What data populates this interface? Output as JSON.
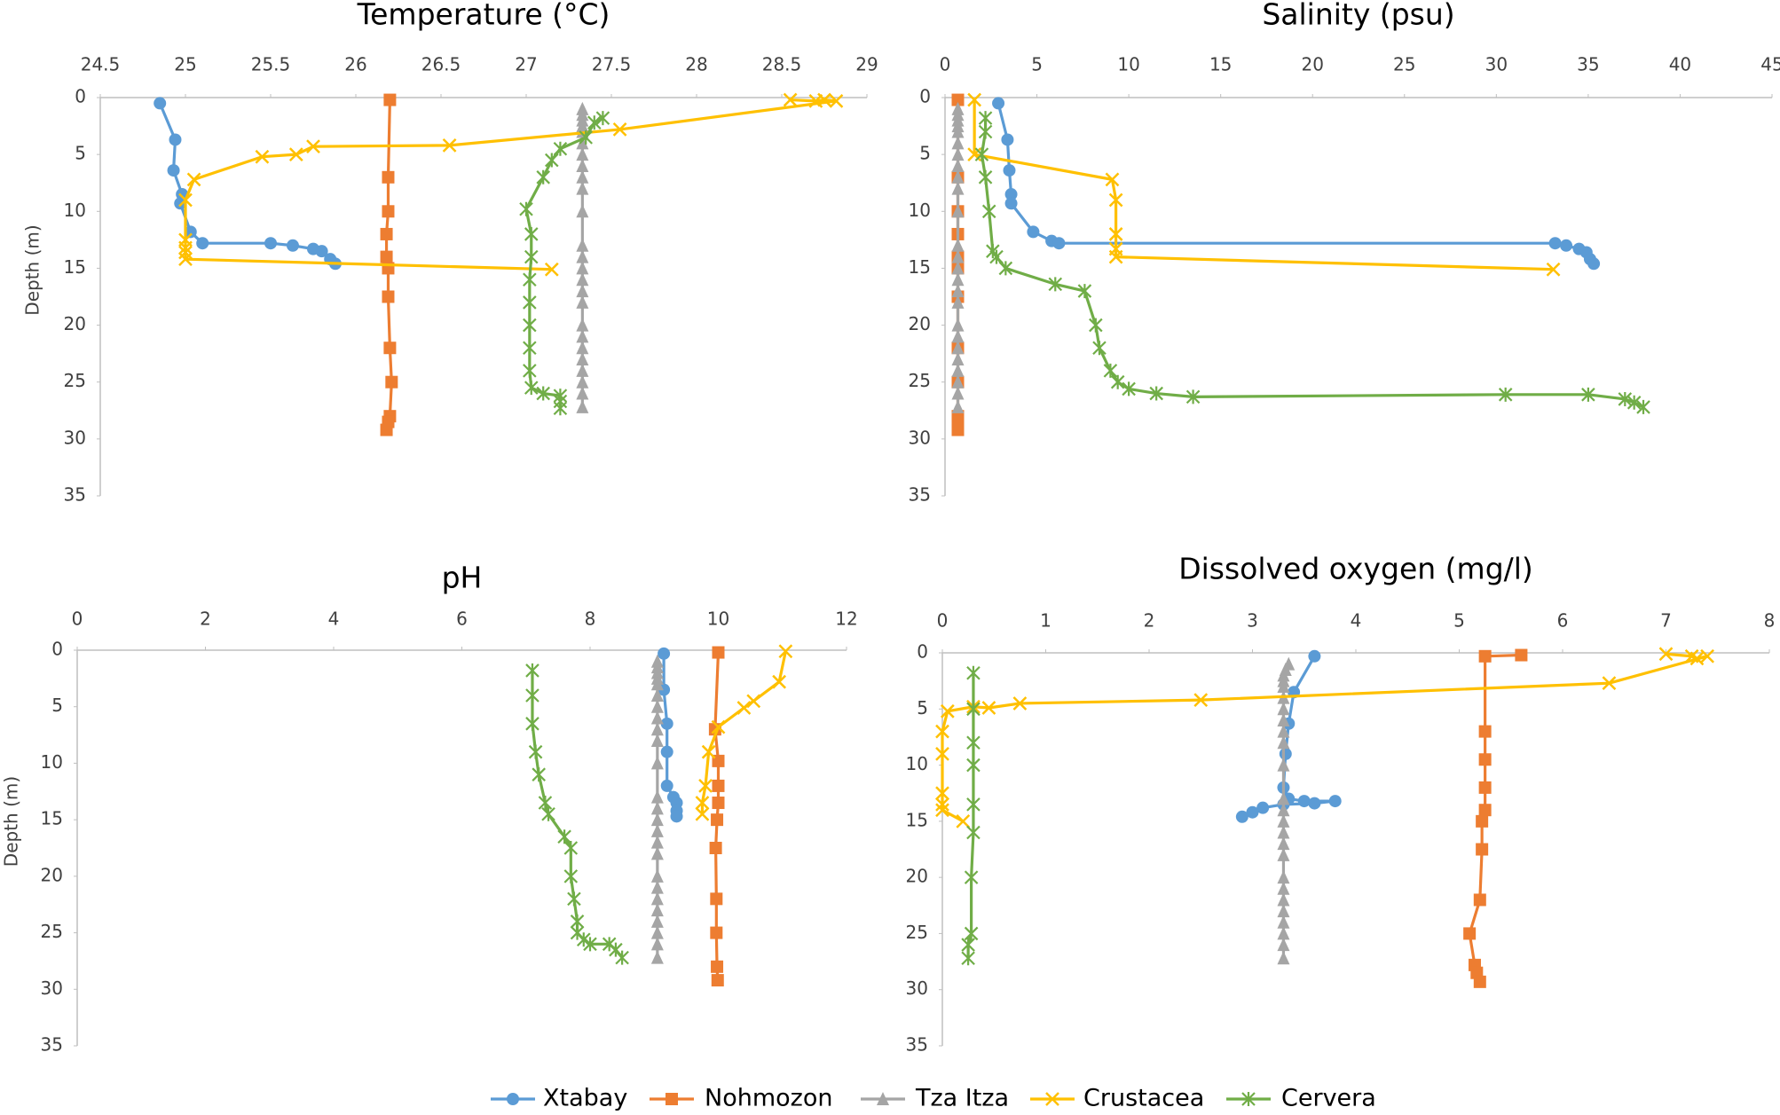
{
  "chart_data": [
    {
      "type": "line",
      "title": "Temperature (°C)",
      "ylabel": "Depth (m)",
      "y_inverted": true,
      "x_axis_position": "top",
      "xlim": [
        24.5,
        29
      ],
      "xticks": [
        24.5,
        25,
        25.5,
        26,
        26.5,
        27,
        27.5,
        28,
        28.5,
        29
      ],
      "ylim": [
        0,
        35
      ],
      "yticks": [
        0,
        5,
        10,
        15,
        20,
        25,
        30,
        35
      ],
      "legend": "bottom",
      "series": [
        {
          "name": "Xtabay",
          "color": "#5b9bd5",
          "marker": "circle",
          "x": [
            24.85,
            24.94,
            24.93,
            24.98,
            24.97,
            25.03,
            25.1,
            25.5,
            25.63,
            25.75,
            25.8,
            25.85,
            25.88
          ],
          "y": [
            0.5,
            3.7,
            6.4,
            8.5,
            9.3,
            11.8,
            12.8,
            12.8,
            13.0,
            13.3,
            13.5,
            14.2,
            14.6
          ]
        },
        {
          "name": "Nohmozon",
          "color": "#ed7d31",
          "marker": "square",
          "x": [
            26.2,
            26.19,
            26.19,
            26.18,
            26.18,
            26.19,
            26.19,
            26.2,
            26.21,
            26.2,
            26.19,
            26.18
          ],
          "y": [
            0.2,
            7,
            10,
            12,
            14,
            15,
            17.5,
            22,
            25,
            28,
            28.5,
            29.2
          ]
        },
        {
          "name": "Tza Itza",
          "color": "#a5a5a5",
          "marker": "triangle",
          "x": [
            27.33,
            27.33,
            27.33,
            27.33,
            27.33,
            27.33,
            27.33,
            27.33,
            27.33,
            27.33,
            27.33,
            27.33,
            27.33,
            27.33,
            27.33,
            27.33,
            27.33,
            27.33,
            27.33,
            27.33,
            27.33,
            27.33,
            27.33,
            27.33,
            27.33
          ],
          "y": [
            1,
            1.5,
            2,
            2.5,
            3,
            4,
            5,
            6,
            7,
            8,
            10,
            13,
            14,
            15,
            16,
            17,
            18,
            20,
            21,
            22,
            23,
            24,
            25,
            26,
            27.2
          ]
        },
        {
          "name": "Crustacea",
          "color": "#ffc000",
          "marker": "x",
          "x": [
            28.55,
            28.7,
            28.75,
            28.82,
            27.55,
            26.55,
            25.75,
            25.65,
            25.45,
            25.05,
            25.0,
            25.0,
            25.0,
            25.0,
            25.0,
            27.15
          ],
          "y": [
            0.2,
            0.3,
            0.2,
            0.3,
            2.8,
            4.2,
            4.3,
            5.0,
            5.2,
            7.2,
            9.0,
            12.5,
            13.2,
            13.6,
            14.2,
            15.1
          ]
        },
        {
          "name": "Cervera",
          "color": "#70ad47",
          "marker": "asterisk",
          "x": [
            27.45,
            27.4,
            27.35,
            27.2,
            27.15,
            27.1,
            27.0,
            27.03,
            27.03,
            27.02,
            27.02,
            27.02,
            27.02,
            27.02,
            27.03,
            27.1,
            27.2,
            27.2,
            27.2
          ],
          "y": [
            1.8,
            2.2,
            3.5,
            4.5,
            5.5,
            7.0,
            9.8,
            12,
            14,
            16,
            18,
            20,
            22,
            24,
            25.5,
            26,
            26.2,
            26.7,
            27.3
          ]
        }
      ]
    },
    {
      "type": "line",
      "title": "Salinity (psu)",
      "y_inverted": true,
      "x_axis_position": "top",
      "xlim": [
        0,
        45
      ],
      "xticks": [
        0,
        5,
        10,
        15,
        20,
        25,
        30,
        35,
        40,
        45
      ],
      "ylim": [
        0,
        35
      ],
      "yticks": [
        0,
        5,
        10,
        15,
        20,
        25,
        30,
        35
      ],
      "series": [
        {
          "color": "#5b9bd5",
          "marker": "circle",
          "x": [
            2.9,
            3.4,
            3.5,
            3.6,
            3.6,
            4.8,
            5.8,
            6.2,
            33.2,
            33.8,
            34.5,
            34.9,
            35.1,
            35.3
          ],
          "y": [
            0.5,
            3.7,
            6.4,
            8.5,
            9.3,
            11.8,
            12.6,
            12.8,
            12.8,
            13.0,
            13.3,
            13.6,
            14.2,
            14.6
          ]
        },
        {
          "color": "#ed7d31",
          "marker": "square",
          "x": [
            0.7,
            0.7,
            0.7,
            0.7,
            0.7,
            0.7,
            0.7,
            0.7,
            0.7,
            0.7,
            0.7,
            0.7
          ],
          "y": [
            0.2,
            7,
            10,
            12,
            14,
            15,
            17.5,
            22,
            25,
            28,
            28.5,
            29.2
          ]
        },
        {
          "color": "#a5a5a5",
          "marker": "triangle",
          "x": [
            0.7,
            0.7,
            0.7,
            0.7,
            0.7,
            0.7,
            0.7,
            0.7,
            0.7,
            0.7,
            0.7,
            0.7,
            0.7,
            0.7,
            0.7,
            0.7,
            0.7,
            0.7,
            0.7,
            0.7,
            0.7,
            0.7,
            0.7,
            0.7,
            0.7
          ],
          "y": [
            1,
            1.5,
            2,
            2.5,
            3,
            4,
            5,
            6,
            7,
            8,
            10,
            13,
            14,
            15,
            16,
            17,
            18,
            20,
            21,
            22,
            23,
            24,
            25,
            26,
            27.2
          ]
        },
        {
          "color": "#ffc000",
          "marker": "x",
          "x": [
            1.6,
            1.6,
            9.1,
            9.3,
            9.3,
            9.3,
            9.3,
            33.1
          ],
          "y": [
            0.2,
            5.0,
            7.2,
            9.0,
            12,
            13.3,
            14,
            15.1
          ]
        },
        {
          "color": "#70ad47",
          "marker": "asterisk",
          "x": [
            2.2,
            2.2,
            2.0,
            2.2,
            2.4,
            2.6,
            2.8,
            3.3,
            6,
            7.6,
            8.2,
            8.4,
            9,
            9.4,
            10,
            11.5,
            13.5,
            30.5,
            35,
            37,
            37.5,
            38
          ],
          "y": [
            1.8,
            3.0,
            5,
            7,
            10,
            13.5,
            14,
            15,
            16.4,
            17,
            20,
            22,
            24,
            25,
            25.6,
            26,
            26.3,
            26.1,
            26.1,
            26.5,
            26.8,
            27.2
          ]
        }
      ]
    },
    {
      "type": "line",
      "title": "pH",
      "ylabel": "Depth (m)",
      "y_inverted": true,
      "x_axis_position": "top",
      "xlim": [
        0,
        12
      ],
      "xticks": [
        0,
        2,
        4,
        6,
        8,
        10,
        12
      ],
      "ylim": [
        0,
        35
      ],
      "yticks": [
        0,
        5,
        10,
        15,
        20,
        25,
        30,
        35
      ],
      "series": [
        {
          "color": "#5b9bd5",
          "marker": "circle",
          "x": [
            9.15,
            9.15,
            9.2,
            9.2,
            9.2,
            9.3,
            9.35,
            9.35,
            9.35
          ],
          "y": [
            0.3,
            3.5,
            6.5,
            9,
            12,
            13,
            13.5,
            14.2,
            14.7
          ]
        },
        {
          "color": "#ed7d31",
          "marker": "square",
          "x": [
            10,
            9.95,
            10,
            10,
            10,
            9.98,
            9.96,
            9.97,
            9.97,
            9.98,
            9.99
          ],
          "y": [
            0.2,
            7,
            9.8,
            12,
            13.5,
            15,
            17.5,
            22,
            25,
            28,
            29.2
          ]
        },
        {
          "color": "#a5a5a5",
          "marker": "triangle",
          "x": [
            9.05,
            9.05,
            9.05,
            9.05,
            9.05,
            9.05,
            9.05,
            9.05,
            9.05,
            9.05,
            9.05,
            9.05,
            9.05,
            9.05,
            9.05,
            9.05,
            9.05,
            9.05,
            9.05,
            9.05,
            9.05,
            9.05,
            9.05,
            9.05,
            9.05
          ],
          "y": [
            1,
            1.5,
            2,
            2.5,
            3,
            4,
            5,
            6,
            7,
            8,
            10,
            13,
            14,
            15,
            16,
            17,
            18,
            20,
            21,
            22,
            23,
            24,
            25,
            26,
            27.2
          ]
        },
        {
          "color": "#ffc000",
          "marker": "x",
          "x": [
            11.05,
            10.95,
            10.55,
            10.4,
            10.0,
            9.85,
            9.8,
            9.75,
            9.75
          ],
          "y": [
            0.1,
            2.8,
            4.5,
            5.1,
            6.8,
            9.0,
            12,
            13.5,
            14.5
          ]
        },
        {
          "color": "#70ad47",
          "marker": "asterisk",
          "x": [
            7.1,
            7.1,
            7.1,
            7.15,
            7.2,
            7.3,
            7.35,
            7.6,
            7.7,
            7.7,
            7.75,
            7.8,
            7.8,
            7.9,
            8.0,
            8.3,
            8.4,
            8.5
          ],
          "y": [
            1.8,
            4,
            6.5,
            9,
            11,
            13.5,
            14.5,
            16.5,
            17.5,
            20,
            22,
            24,
            25,
            25.6,
            26,
            26,
            26.5,
            27.2
          ]
        }
      ]
    },
    {
      "type": "line",
      "title": "Dissolved oxygen (mg/l)",
      "y_inverted": true,
      "x_axis_position": "top",
      "xlim": [
        0,
        8
      ],
      "xticks": [
        0,
        1,
        2,
        3,
        4,
        5,
        6,
        7,
        8
      ],
      "ylim": [
        0,
        35
      ],
      "yticks": [
        0,
        5,
        10,
        15,
        20,
        25,
        30,
        35
      ],
      "series": [
        {
          "color": "#5b9bd5",
          "marker": "circle",
          "x": [
            3.6,
            3.4,
            3.35,
            3.32,
            3.3,
            3.35,
            3.5,
            3.8,
            3.6,
            3.3,
            3.1,
            3.0,
            2.9
          ],
          "y": [
            0.3,
            3.5,
            6.3,
            9,
            12,
            13,
            13.2,
            13.2,
            13.4,
            13.5,
            13.8,
            14.2,
            14.6
          ]
        },
        {
          "color": "#ed7d31",
          "marker": "square",
          "x": [
            5.6,
            5.25,
            5.25,
            5.25,
            5.25,
            5.25,
            5.22,
            5.22,
            5.2,
            5.1,
            5.15,
            5.17,
            5.2
          ],
          "y": [
            0.2,
            0.3,
            7,
            9.5,
            12,
            14,
            15,
            17.5,
            22,
            25,
            27.8,
            28.5,
            29.3
          ]
        },
        {
          "color": "#a5a5a5",
          "marker": "triangle",
          "x": [
            3.35,
            3.32,
            3.3,
            3.3,
            3.3,
            3.3,
            3.3,
            3.3,
            3.3,
            3.3,
            3.3,
            3.3,
            3.3,
            3.3,
            3.3,
            3.3,
            3.3,
            3.3,
            3.3,
            3.3,
            3.3,
            3.3,
            3.3,
            3.3,
            3.3
          ],
          "y": [
            1,
            1.5,
            2,
            2.5,
            3,
            4,
            5,
            6,
            7,
            8,
            10,
            13,
            14,
            15,
            16,
            17,
            18,
            20,
            21,
            22,
            23,
            24,
            25,
            26,
            27.2
          ]
        },
        {
          "color": "#ffc000",
          "marker": "x",
          "x": [
            7.0,
            7.25,
            7.3,
            7.4,
            6.45,
            2.5,
            0.75,
            0.45,
            0.3,
            0.05,
            0,
            0,
            0,
            0,
            0,
            0.2
          ],
          "y": [
            0.1,
            0.3,
            0.5,
            0.3,
            2.7,
            4.2,
            4.5,
            4.9,
            4.8,
            5.2,
            7,
            9,
            12.5,
            13.5,
            14,
            15
          ]
        },
        {
          "color": "#70ad47",
          "marker": "asterisk",
          "x": [
            0.3,
            0.3,
            0.3,
            0.3,
            0.3,
            0.3,
            0.28,
            0.28,
            0.25,
            0.25
          ],
          "y": [
            1.8,
            5,
            8,
            10,
            13.5,
            16,
            20,
            25,
            26,
            27.2
          ]
        }
      ]
    }
  ]
}
